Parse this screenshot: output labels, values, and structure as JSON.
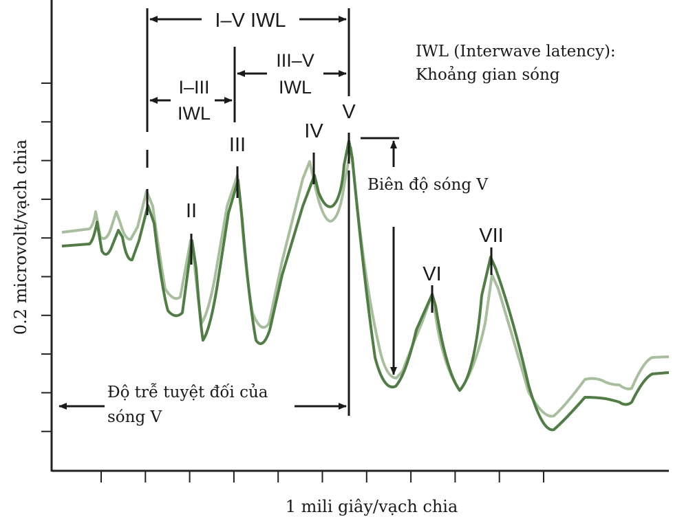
{
  "labels": {
    "y_axis": "0.2 microvolt/vạch chia",
    "x_axis": "1 mili giây/vạch chia",
    "legend_line1": "IWL (Interwave latency):",
    "legend_line2": "Khoảng gian sóng",
    "i_v_iwl": "I–V IWL",
    "i_iii_line1": "I–III",
    "i_iii_line2": "IWL",
    "iii_v_line1": "III–V",
    "iii_v_line2": "IWL",
    "amplitude": "Biên độ sóng V",
    "latency_line1": "Độ trễ tuyệt đối của",
    "latency_line2": "sóng V"
  },
  "waves": [
    "I",
    "II",
    "III",
    "IV",
    "V",
    "VI",
    "VII"
  ],
  "colors": {
    "dark_trace": "#4f7d43",
    "light_trace": "#a8bf9d",
    "axis": "#222222",
    "annotation": "#1a1a1a"
  }
}
